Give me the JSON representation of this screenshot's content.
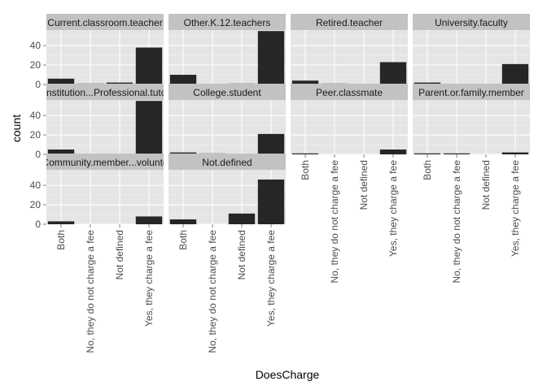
{
  "chart_data": {
    "type": "bar",
    "xlabel": "DoesCharge",
    "ylabel": "count",
    "categories": [
      "Both",
      "No, they do not charge a fee",
      "Not defined",
      "Yes, they charge a fee"
    ],
    "ylim": [
      0,
      56
    ],
    "yticks": [
      0,
      20,
      40
    ],
    "colors": {
      "panel_bg": "#e5e5e5",
      "grid": "#ffffff",
      "strip_bg": "#c2c2c2",
      "bar": "#262626"
    },
    "facets": [
      {
        "name": "Current.classroom.teacher",
        "values": [
          6,
          1,
          2,
          38
        ]
      },
      {
        "name": "Other.K.12.teachers",
        "values": [
          10,
          0,
          1,
          55
        ]
      },
      {
        "name": "Retired.teacher",
        "values": [
          4,
          1,
          0,
          23
        ]
      },
      {
        "name": "University.faculty",
        "values": [
          2,
          0,
          0,
          21
        ]
      },
      {
        "name": "Institution...Professional.tuto",
        "values": [
          5,
          0,
          0,
          55
        ]
      },
      {
        "name": "College.student",
        "values": [
          2,
          1,
          0,
          21
        ]
      },
      {
        "name": "Peer.classmate",
        "values": [
          1,
          0,
          0,
          5
        ]
      },
      {
        "name": "Parent.or.family.member",
        "values": [
          1,
          1,
          0,
          2
        ]
      },
      {
        "name": "Community.member...volunte",
        "values": [
          3,
          0,
          0,
          8
        ]
      },
      {
        "name": "Not.defined",
        "values": [
          5,
          0,
          11,
          46
        ]
      }
    ]
  }
}
